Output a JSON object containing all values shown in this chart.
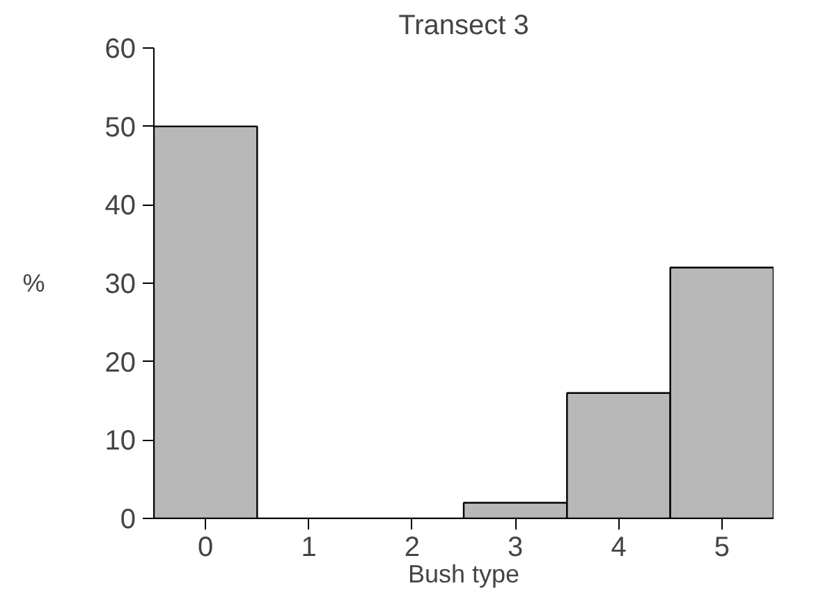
{
  "chart_data": {
    "type": "bar",
    "title": "Transect 3",
    "xlabel": "Bush type",
    "ylabel": "%",
    "categories": [
      "0",
      "1",
      "2",
      "3",
      "4",
      "5"
    ],
    "values": [
      50,
      0,
      0,
      2,
      16,
      32
    ],
    "color": "#b8b8b8",
    "ylim": [
      0,
      60
    ],
    "yticks": [
      0,
      10,
      20,
      30,
      40,
      50,
      60
    ],
    "grid": false
  }
}
